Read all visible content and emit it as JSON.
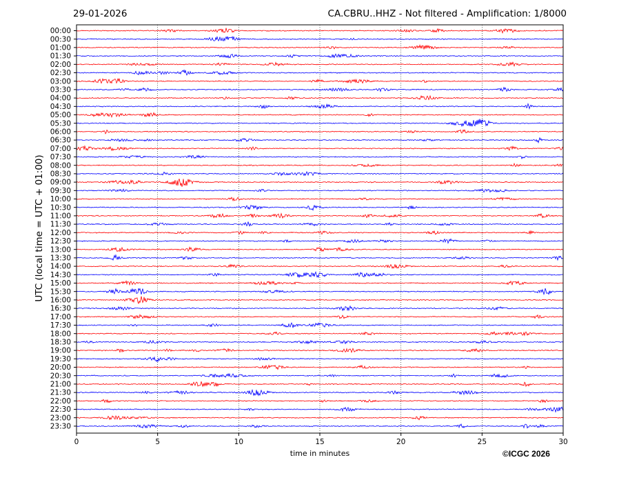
{
  "header": {
    "date": "29-01-2026",
    "station": "CA.CBRU..HHZ - Not filtered - Amplification: 1/8000"
  },
  "footer": {
    "copyright": "©ICGC 2026"
  },
  "chart_data": {
    "type": "line",
    "xlabel": "time in minutes",
    "ylabel": "UTC (local time = UTC + 01:00)",
    "xlim": [
      0,
      30
    ],
    "x_ticks": [
      0,
      5,
      10,
      15,
      20,
      25,
      30
    ],
    "grid": "vertical dotted lines at every 5 minutes",
    "series_colors": [
      "#ff0000",
      "#0000ff"
    ],
    "color_pattern": "alternating per trace starting red",
    "rows": [
      "00:00",
      "00:30",
      "01:00",
      "01:30",
      "02:00",
      "02:30",
      "03:00",
      "03:30",
      "04:00",
      "04:30",
      "05:00",
      "05:30",
      "06:00",
      "06:30",
      "07:00",
      "07:30",
      "08:00",
      "08:30",
      "09:00",
      "09:30",
      "10:00",
      "10:30",
      "11:00",
      "11:30",
      "12:00",
      "12:30",
      "13:00",
      "13:30",
      "14:00",
      "14:30",
      "15:00",
      "15:30",
      "16:00",
      "16:30",
      "17:00",
      "17:30",
      "18:00",
      "18:30",
      "19:00",
      "19:30",
      "20:00",
      "20:30",
      "21:00",
      "21:30",
      "22:00",
      "22:30",
      "23:00",
      "23:30"
    ]
  }
}
